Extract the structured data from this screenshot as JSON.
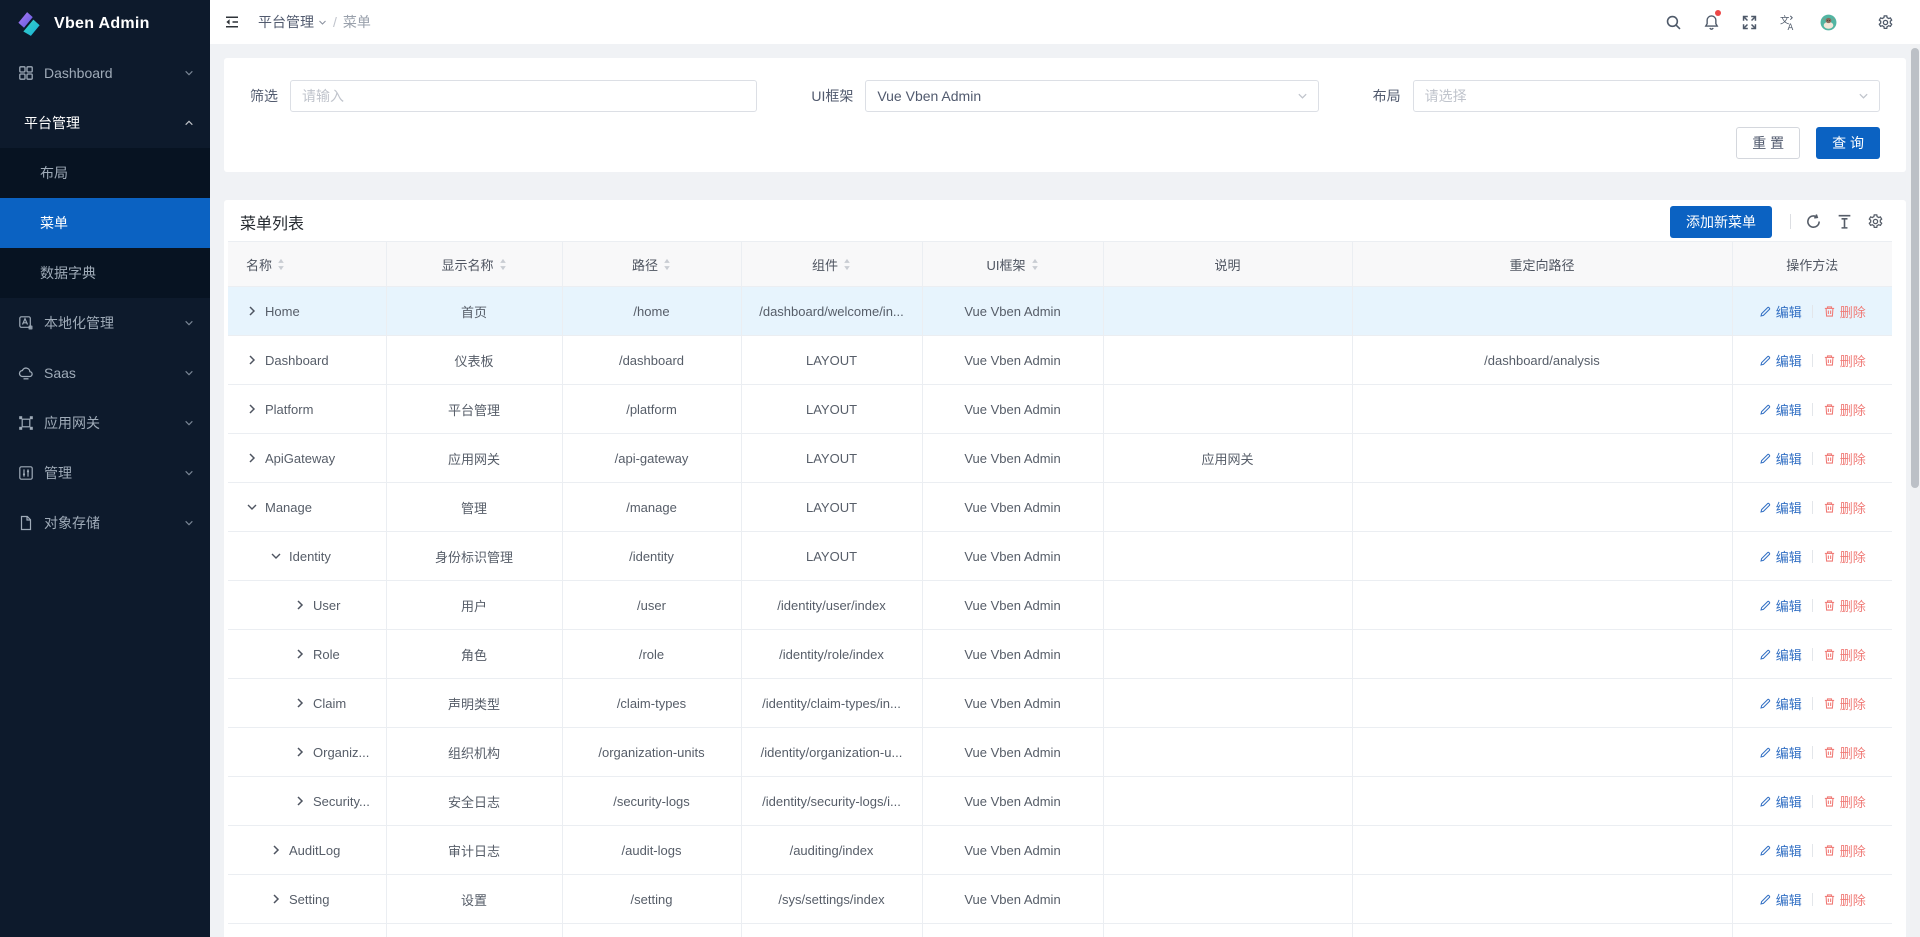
{
  "colors": {
    "primary": "#0b62c2",
    "sidebar_bg": "#0d1a2c",
    "sidebar_sub_bg": "#071322",
    "selected_row": "#e7f4fd",
    "link_blue": "#3370c4",
    "danger_red": "#f07a76"
  },
  "sidebar": {
    "logo_text": "Vben Admin",
    "items": [
      {
        "key": "dashboard",
        "label": "Dashboard",
        "icon": "dashboard-grid",
        "level": "top",
        "chevron": "down"
      },
      {
        "key": "platform",
        "label": "平台管理",
        "level": "top",
        "chevron": "up",
        "open": true
      },
      {
        "key": "layout",
        "label": "布局",
        "level": "sub"
      },
      {
        "key": "menu",
        "label": "菜单",
        "level": "sub",
        "active": true
      },
      {
        "key": "data-dictionary",
        "label": "数据字典",
        "level": "sub"
      },
      {
        "key": "localization",
        "label": "本地化管理",
        "icon": "localization",
        "level": "top",
        "chevron": "down"
      },
      {
        "key": "saas",
        "label": "Saas",
        "icon": "saas-cloud",
        "level": "top",
        "chevron": "down"
      },
      {
        "key": "gateway",
        "label": "应用网关",
        "icon": "gateway",
        "level": "top",
        "chevron": "down"
      },
      {
        "key": "manage",
        "label": "管理",
        "icon": "manage-sliders",
        "level": "top",
        "chevron": "down"
      },
      {
        "key": "object-storage",
        "label": "对象存储",
        "icon": "object-storage-file",
        "level": "top",
        "chevron": "down"
      }
    ]
  },
  "header": {
    "breadcrumb": {
      "parent": "平台管理",
      "separator": "/",
      "current": "菜单"
    },
    "actions": [
      {
        "key": "search",
        "icon": "search"
      },
      {
        "key": "notification",
        "icon": "bell",
        "badge": true
      },
      {
        "key": "fullscreen",
        "icon": "fullscreen"
      },
      {
        "key": "locale",
        "icon": "locale"
      },
      {
        "key": "user-avatar",
        "icon": "avatar"
      },
      {
        "key": "settings",
        "icon": "gear",
        "gap": true
      }
    ]
  },
  "filter": {
    "fields": [
      {
        "key": "keyword",
        "label": "筛选",
        "control": "input",
        "placeholder": "请输入",
        "value": ""
      },
      {
        "key": "ui-framework",
        "label": "UI框架",
        "control": "select",
        "placeholder": "",
        "value": "Vue Vben Admin"
      },
      {
        "key": "layout",
        "label": "布局",
        "control": "select",
        "placeholder": "请选择",
        "value": ""
      }
    ],
    "reset_label": "重 置",
    "query_label": "查 询"
  },
  "table": {
    "title": "菜单列表",
    "add_button_label": "添加新菜单",
    "edit_label": "编辑",
    "delete_label": "删除",
    "columns": [
      {
        "label": "名称",
        "sortable": true,
        "align": "left"
      },
      {
        "label": "显示名称",
        "sortable": true
      },
      {
        "label": "路径",
        "sortable": true
      },
      {
        "label": "组件",
        "sortable": true
      },
      {
        "label": "UI框架",
        "sortable": true
      },
      {
        "label": "说明",
        "sortable": false
      },
      {
        "label": "重定向路径",
        "sortable": false
      },
      {
        "label": "操作方法",
        "sortable": false
      }
    ],
    "rows": [
      {
        "name": "Home",
        "indent": 0,
        "expand": "closed",
        "display_name": "首页",
        "path": "/home",
        "component": "/dashboard/welcome/in...",
        "ui_framework": "Vue Vben Admin",
        "description": "",
        "redirect": "",
        "selected": true
      },
      {
        "name": "Dashboard",
        "indent": 0,
        "expand": "closed",
        "display_name": "仪表板",
        "path": "/dashboard",
        "component": "LAYOUT",
        "ui_framework": "Vue Vben Admin",
        "description": "",
        "redirect": "/dashboard/analysis"
      },
      {
        "name": "Platform",
        "indent": 0,
        "expand": "closed",
        "display_name": "平台管理",
        "path": "/platform",
        "component": "LAYOUT",
        "ui_framework": "Vue Vben Admin",
        "description": "",
        "redirect": ""
      },
      {
        "name": "ApiGateway",
        "indent": 0,
        "expand": "closed",
        "display_name": "应用网关",
        "path": "/api-gateway",
        "component": "LAYOUT",
        "ui_framework": "Vue Vben Admin",
        "description": "应用网关",
        "redirect": ""
      },
      {
        "name": "Manage",
        "indent": 0,
        "expand": "open",
        "display_name": "管理",
        "path": "/manage",
        "component": "LAYOUT",
        "ui_framework": "Vue Vben Admin",
        "description": "",
        "redirect": ""
      },
      {
        "name": "Identity",
        "indent": 1,
        "expand": "open",
        "display_name": "身份标识管理",
        "path": "/identity",
        "component": "LAYOUT",
        "ui_framework": "Vue Vben Admin",
        "description": "",
        "redirect": ""
      },
      {
        "name": "User",
        "indent": 2,
        "expand": "closed",
        "display_name": "用户",
        "path": "/user",
        "component": "/identity/user/index",
        "ui_framework": "Vue Vben Admin",
        "description": "",
        "redirect": ""
      },
      {
        "name": "Role",
        "indent": 2,
        "expand": "closed",
        "display_name": "角色",
        "path": "/role",
        "component": "/identity/role/index",
        "ui_framework": "Vue Vben Admin",
        "description": "",
        "redirect": ""
      },
      {
        "name": "Claim",
        "indent": 2,
        "expand": "closed",
        "display_name": "声明类型",
        "path": "/claim-types",
        "component": "/identity/claim-types/in...",
        "ui_framework": "Vue Vben Admin",
        "description": "",
        "redirect": ""
      },
      {
        "name": "Organiz...",
        "indent": 2,
        "expand": "closed",
        "display_name": "组织机构",
        "path": "/organization-units",
        "component": "/identity/organization-u...",
        "ui_framework": "Vue Vben Admin",
        "description": "",
        "redirect": ""
      },
      {
        "name": "Security...",
        "indent": 2,
        "expand": "closed",
        "display_name": "安全日志",
        "path": "/security-logs",
        "component": "/identity/security-logs/i...",
        "ui_framework": "Vue Vben Admin",
        "description": "",
        "redirect": ""
      },
      {
        "name": "AuditLog",
        "indent": 1,
        "expand": "closed",
        "display_name": "审计日志",
        "path": "/audit-logs",
        "component": "/auditing/index",
        "ui_framework": "Vue Vben Admin",
        "description": "",
        "redirect": ""
      },
      {
        "name": "Setting",
        "indent": 1,
        "expand": "closed",
        "display_name": "设置",
        "path": "/setting",
        "component": "/sys/settings/index",
        "ui_framework": "Vue Vben Admin",
        "description": "",
        "redirect": ""
      }
    ]
  }
}
